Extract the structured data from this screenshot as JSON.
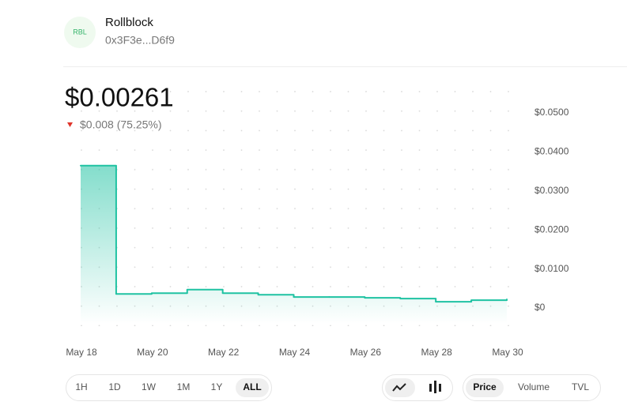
{
  "header": {
    "icon": "RBL",
    "name": "Rollblock",
    "address": "0x3F3e...D6f9",
    "price": "$0.00261",
    "change": "$0.008 (75.25%)"
  },
  "chart_data": {
    "type": "line",
    "step": true,
    "color": "#1fc2a2",
    "categories": [
      "May 18",
      null,
      "May 20",
      null,
      "May 22",
      null,
      "May 24",
      null,
      "May 26",
      null,
      "May 28",
      null,
      "May 30"
    ],
    "values": [
      0.0365,
      0.0036,
      0.0038,
      0.0047,
      0.0038,
      0.0034,
      0.0028,
      0.0028,
      0.0026,
      0.0024,
      0.0016,
      0.002,
      0.0022
    ],
    "ylim": [
      0,
      0.05
    ],
    "yticks": [
      {
        "value": 0,
        "label": "$0"
      },
      {
        "value": 0.01,
        "label": "$0.0100"
      },
      {
        "value": 0.02,
        "label": "$0.0200"
      },
      {
        "value": 0.03,
        "label": "$0.0300"
      },
      {
        "value": 0.04,
        "label": "$0.0400"
      },
      {
        "value": 0.05,
        "label": "$0.0500"
      }
    ]
  },
  "controls": {
    "ranges": [
      "1H",
      "1D",
      "1W",
      "1M",
      "1Y",
      "ALL"
    ],
    "selected_range": "ALL",
    "metrics": [
      "Price",
      "Volume",
      "TVL"
    ],
    "selected_metric": "Price"
  }
}
